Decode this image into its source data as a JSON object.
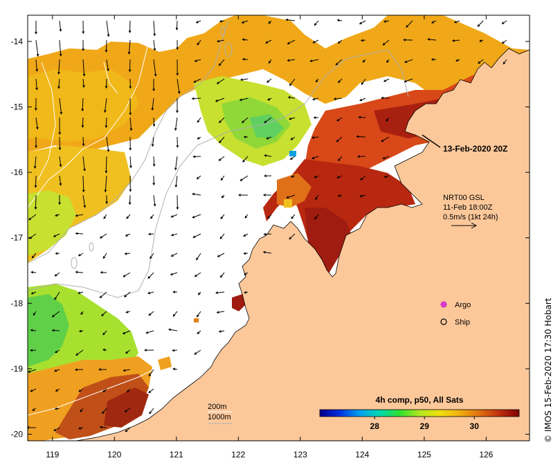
{
  "map": {
    "region": "North-west Australia, Kimberley coast",
    "x_ticks": [
      "119",
      "120",
      "121",
      "122",
      "123",
      "124",
      "125",
      "126"
    ],
    "y_ticks": [
      "-14",
      "-15",
      "-16",
      "-17",
      "-18",
      "-19",
      "-20"
    ],
    "lon_range": [
      118.6,
      126.7
    ],
    "lat_range": [
      -20.1,
      -13.6
    ]
  },
  "overpass": {
    "label": "13-Feb-2020 20Z"
  },
  "current_legend": {
    "line1": "NRT00 GSL",
    "line2": "11-Feb 18:00Z",
    "line3": "0.5m/s (1kt 24h)"
  },
  "markers": {
    "argo_label": "Argo",
    "ship_label": "Ship"
  },
  "isobaths": {
    "shallow": "200m",
    "deep": "1000m"
  },
  "colorbar": {
    "title": "4h comp, p50, All Sats",
    "ticks": [
      "28",
      "29",
      "30"
    ],
    "tick_values": [
      28,
      29,
      30
    ],
    "range": [
      26.9,
      30.9
    ],
    "colors": [
      "#00008b",
      "#0030e0",
      "#00a0f0",
      "#00d8b0",
      "#30e030",
      "#b0e820",
      "#f0e010",
      "#f0b010",
      "#e07010",
      "#c03010",
      "#800000"
    ]
  },
  "credit": "© IMOS 15-Feb-2020 17:30 Hobart",
  "colors": {
    "land": "#fcc89a",
    "no_data": "#ffffff",
    "coast": "#000000",
    "isobath": "#b0b0b0"
  }
}
